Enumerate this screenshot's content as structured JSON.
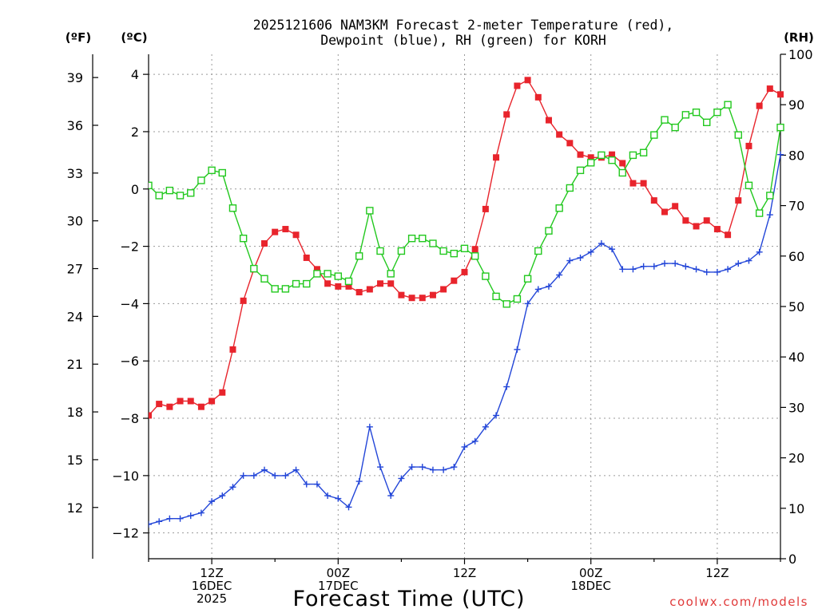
{
  "chart_data": {
    "type": "line",
    "title": "2025121606 NAM3KM Forecast 2-meter Temperature (red),",
    "subtitle": "Dewpoint (blue), RH (green) for KORH",
    "xlabel": "Forecast Time (UTC)",
    "credit": "coolwx.com/models",
    "y_left_outer_label": "(ºF)",
    "y_left_inner_label": "(ºC)",
    "y_right_label": "(RH)",
    "xlim": [
      6,
      66
    ],
    "ylim_c": [
      -12.9,
      4.7
    ],
    "ylim_rh": [
      0,
      100
    ],
    "c_ticks": [
      4,
      2,
      0,
      -2,
      -4,
      -6,
      -8,
      -10,
      -12
    ],
    "f_ticks": [
      39,
      36,
      33,
      30,
      27,
      24,
      21,
      18,
      15,
      12
    ],
    "rh_ticks": [
      100,
      90,
      80,
      70,
      60,
      50,
      40,
      30,
      20,
      10,
      0
    ],
    "x_ticks": [
      {
        "x": 12,
        "lines": [
          "12Z",
          "16DEC",
          "2025"
        ]
      },
      {
        "x": 24,
        "lines": [
          "00Z",
          "17DEC"
        ]
      },
      {
        "x": 36,
        "lines": [
          "12Z"
        ]
      },
      {
        "x": 48,
        "lines": [
          "00Z",
          "18DEC"
        ]
      },
      {
        "x": 60,
        "lines": [
          "12Z"
        ]
      }
    ],
    "x": [
      6,
      7,
      8,
      9,
      10,
      11,
      12,
      13,
      14,
      15,
      16,
      17,
      18,
      19,
      20,
      21,
      22,
      23,
      24,
      25,
      26,
      27,
      28,
      29,
      30,
      31,
      32,
      33,
      34,
      35,
      36,
      37,
      38,
      39,
      40,
      41,
      42,
      43,
      44,
      45,
      46,
      47,
      48,
      49,
      50,
      51,
      52,
      53,
      54,
      55,
      56,
      57,
      58,
      59,
      60,
      61,
      62,
      63,
      64,
      65,
      66
    ],
    "series": [
      {
        "name": "Temperature",
        "color": "#e8242c",
        "marker": "filled-square",
        "units": "C",
        "values": [
          -7.9,
          -7.5,
          -7.6,
          -7.4,
          -7.4,
          -7.6,
          -7.4,
          -7.1,
          -5.6,
          -3.9,
          -2.8,
          -1.9,
          -1.5,
          -1.4,
          -1.6,
          -2.4,
          -2.8,
          -3.3,
          -3.4,
          -3.4,
          -3.6,
          -3.5,
          -3.3,
          -3.3,
          -3.7,
          -3.8,
          -3.8,
          -3.7,
          -3.5,
          -3.2,
          -2.9,
          -2.1,
          -0.7,
          1.1,
          2.6,
          3.6,
          3.8,
          3.2,
          2.4,
          1.9,
          1.6,
          1.2,
          1.1,
          1.1,
          1.2,
          0.9,
          0.2,
          0.2,
          -0.4,
          -0.8,
          -0.6,
          -1.1,
          -1.3,
          -1.1,
          -1.4,
          -1.6,
          -0.4,
          1.5,
          2.9,
          3.5,
          3.3
        ]
      },
      {
        "name": "Dewpoint",
        "color": "#2346d8",
        "marker": "plus",
        "units": "C",
        "values": [
          -11.7,
          -11.6,
          -11.5,
          -11.5,
          -11.4,
          -11.3,
          -10.9,
          -10.7,
          -10.4,
          -10.0,
          -10.0,
          -9.8,
          -10.0,
          -10.0,
          -9.8,
          -10.3,
          -10.3,
          -10.7,
          -10.8,
          -11.1,
          -10.2,
          -8.3,
          -9.7,
          -10.7,
          -10.1,
          -9.7,
          -9.7,
          -9.8,
          -9.8,
          -9.7,
          -9.0,
          -8.8,
          -8.3,
          -7.9,
          -6.9,
          -5.6,
          -4.0,
          -3.5,
          -3.4,
          -3.0,
          -2.5,
          -2.4,
          -2.2,
          -1.9,
          -2.1,
          -2.8,
          -2.8,
          -2.7,
          -2.7,
          -2.6,
          -2.6,
          -2.7,
          -2.8,
          -2.9,
          -2.9,
          -2.8,
          -2.6,
          -2.5,
          -2.2,
          -0.9,
          1.2
        ]
      },
      {
        "name": "RH",
        "color": "#22c81e",
        "marker": "open-square",
        "units": "%",
        "values": [
          74,
          72,
          73,
          72,
          72.5,
          75,
          77,
          76.5,
          69.5,
          63.5,
          57.5,
          55.5,
          53.5,
          53.5,
          54.5,
          54.5,
          56.5,
          56.5,
          56,
          55,
          60,
          69,
          61,
          56.5,
          61,
          63.5,
          63.5,
          62.5,
          61,
          60.5,
          61.5,
          60,
          56,
          52,
          50.5,
          51.5,
          55.5,
          61,
          65,
          69.5,
          73.5,
          77,
          78.5,
          80,
          79,
          76.5,
          80,
          80.5,
          84,
          87,
          85.5,
          88,
          88.5,
          86.5,
          88.5,
          90,
          84,
          74,
          68.5,
          72,
          85.5
        ]
      }
    ]
  }
}
